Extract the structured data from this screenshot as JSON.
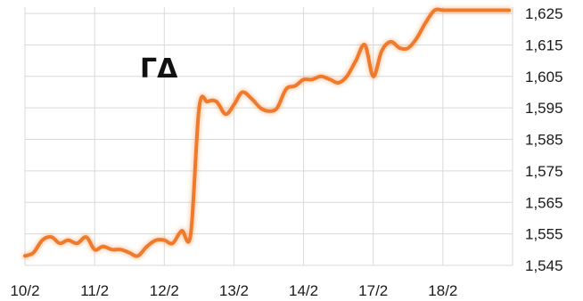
{
  "chart_data": {
    "type": "line",
    "title": "ΓΔ",
    "xlabel": "",
    "ylabel": "",
    "grid": true,
    "y_axis_side": "right",
    "x_tick_labels": [
      "10/2",
      "11/2",
      "12/2",
      "13/2",
      "14/2",
      "17/2",
      "18/2"
    ],
    "y_tick_labels": [
      "1,545",
      "1,555",
      "1,565",
      "1,575",
      "1,585",
      "1,595",
      "1,605",
      "1,615",
      "1,625"
    ],
    "y_ticks": [
      1545,
      1555,
      1565,
      1575,
      1585,
      1595,
      1605,
      1615,
      1625
    ],
    "ylim": [
      1545,
      1627
    ],
    "x_range_in_sessions": [
      0,
      7
    ],
    "series": [
      {
        "color": "#f07a2c",
        "x": [
          0.0,
          0.12,
          0.25,
          0.38,
          0.5,
          0.62,
          0.75,
          0.88,
          1.0,
          1.12,
          1.25,
          1.38,
          1.5,
          1.62,
          1.75,
          1.88,
          2.0,
          2.12,
          2.25,
          2.38,
          2.5,
          2.62,
          2.75,
          2.88,
          3.0,
          3.12,
          3.25,
          3.38,
          3.5,
          3.62,
          3.75,
          3.88,
          4.0,
          4.12,
          4.25,
          4.38,
          4.5,
          4.62,
          4.75,
          4.88,
          5.0,
          5.12,
          5.25,
          5.38,
          5.5,
          5.62,
          5.75,
          5.88,
          6.0,
          6.12,
          6.25,
          6.38,
          6.5,
          6.62,
          6.75,
          6.88,
          6.95
        ],
        "values": [
          1548,
          1549,
          1553,
          1554,
          1552,
          1553,
          1552,
          1554,
          1550,
          1551,
          1550,
          1550,
          1549,
          1548,
          1551,
          1553,
          1553,
          1552,
          1556,
          1555,
          1595,
          1597,
          1597,
          1593,
          1596,
          1600,
          1598,
          1595,
          1594,
          1595,
          1601,
          1602,
          1604,
          1604,
          1605,
          1604,
          1603,
          1605,
          1610,
          1615,
          1605,
          1613,
          1616,
          1614,
          1614,
          1617,
          1622,
          1626,
          1626,
          1626,
          1626,
          1626,
          1626,
          1626,
          1626,
          1626,
          1626
        ]
      }
    ]
  }
}
